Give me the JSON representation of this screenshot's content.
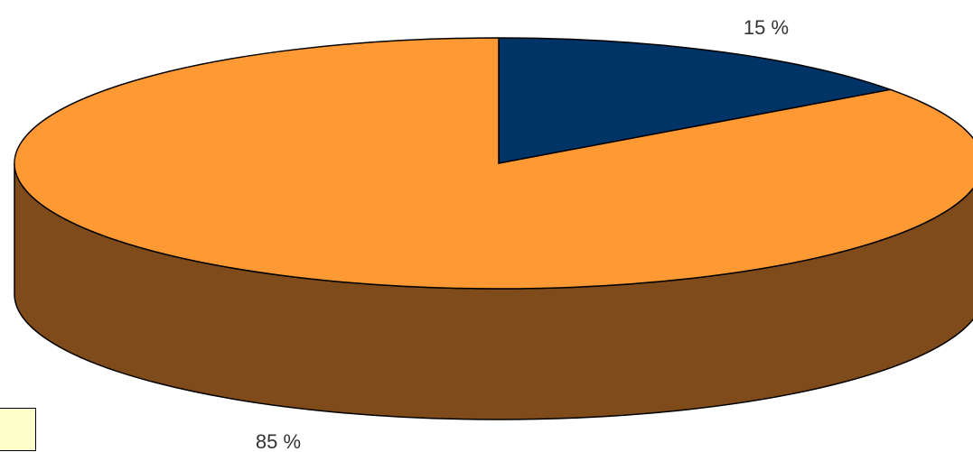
{
  "chart_data": {
    "type": "pie",
    "title": "",
    "style": "3d-exploded-none",
    "series": [
      {
        "values": [
          15,
          85
        ],
        "labels": [
          "15 %",
          "85 %"
        ],
        "colors": [
          "#003366",
          "#ff9933"
        ],
        "side_colors": [
          "#001a33",
          "#7f4b1b"
        ]
      }
    ],
    "legend": "bottom-left"
  }
}
